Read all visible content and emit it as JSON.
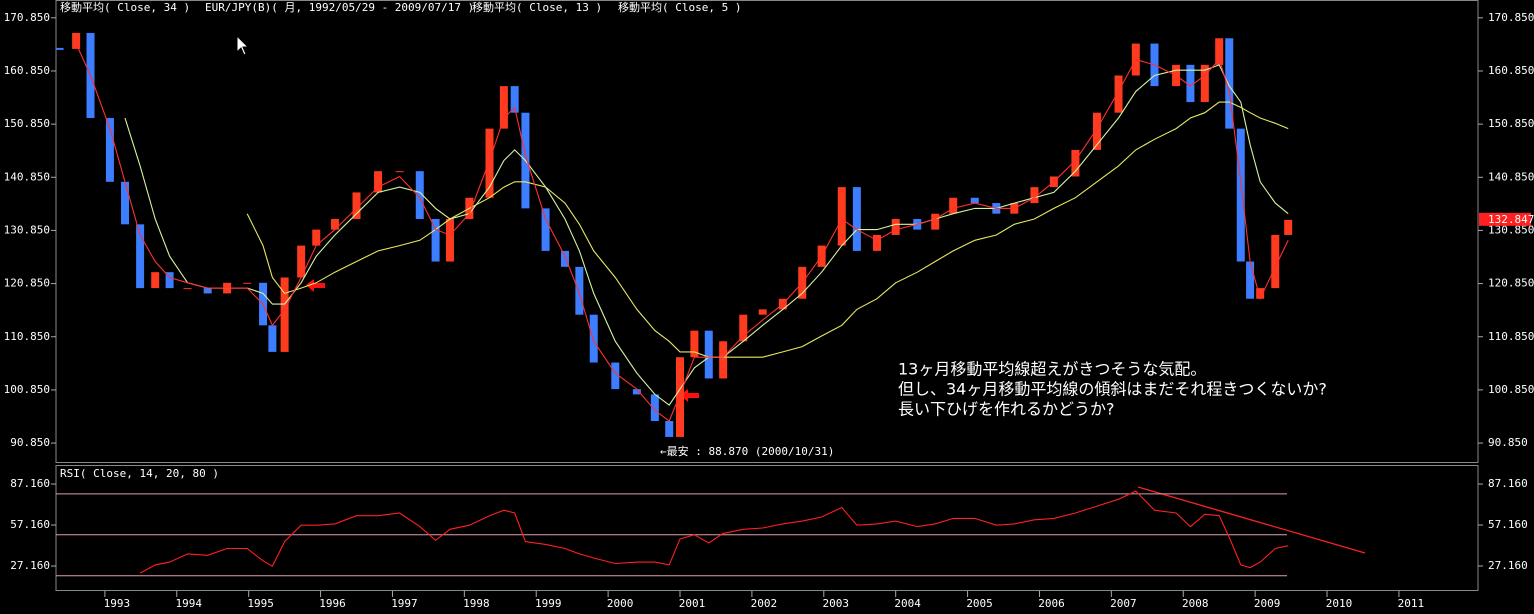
{
  "chart_data": [
    {
      "type": "candlestick",
      "title": "EUR/JPY(B)( 月, 1992/05/29 - 2009/07/17 )",
      "x": [
        1992.37,
        1992.6,
        1992.8,
        1993.07,
        1993.28,
        1993.49,
        1993.7,
        1993.9,
        1994.15,
        1994.43,
        1994.7,
        1994.98,
        1995.2,
        1995.33,
        1995.5,
        1995.73,
        1995.94,
        1996.2,
        1996.5,
        1996.8,
        1997.1,
        1997.38,
        1997.6,
        1997.8,
        1998.07,
        1998.35,
        1998.55,
        1998.7,
        1998.85,
        1999.13,
        1999.4,
        1999.6,
        1999.8,
        2000.1,
        2000.4,
        2000.65,
        2000.85,
        2001.0,
        2001.2,
        2001.4,
        2001.6,
        2001.88,
        2002.15,
        2002.43,
        2002.7,
        2002.97,
        2003.25,
        2003.46,
        2003.74,
        2004.0,
        2004.3,
        2004.55,
        2004.8,
        2005.1,
        2005.4,
        2005.65,
        2005.93,
        2006.2,
        2006.5,
        2006.8,
        2007.1,
        2007.34,
        2007.6,
        2007.9,
        2008.1,
        2008.3,
        2008.5,
        2008.64,
        2008.8,
        2008.93,
        2009.07,
        2009.28,
        2009.46
      ],
      "xlim": [
        1992.32,
        2012.1
      ],
      "ylim": [
        87.1,
        174.2
      ],
      "yticks": [
        {
          "value": 90.85,
          "label": "90.850"
        },
        {
          "value": 100.85,
          "label": "100.850"
        },
        {
          "value": 110.85,
          "label": "110.850"
        },
        {
          "value": 120.85,
          "label": "120.850"
        },
        {
          "value": 130.85,
          "label": "130.850"
        },
        {
          "value": 140.85,
          "label": "140.850"
        },
        {
          "value": 150.85,
          "label": "150.850"
        },
        {
          "value": 160.85,
          "label": "160.850"
        },
        {
          "value": 170.85,
          "label": "170.850"
        }
      ],
      "series": [
        {
          "color_up": "#ff3b1f",
          "color_down": "#3d7dff",
          "values": [
            165,
            168,
            152,
            140,
            132,
            120,
            123,
            120,
            120,
            119,
            121,
            121,
            113,
            108,
            122,
            128,
            131,
            133,
            138,
            142,
            142,
            133,
            125,
            133,
            137,
            150,
            158,
            153,
            135,
            127,
            124,
            115,
            106,
            101,
            100,
            95,
            92,
            107,
            112,
            103,
            110,
            115,
            116,
            118,
            124,
            128,
            139,
            127,
            130,
            133,
            131,
            134,
            137,
            136,
            134,
            136,
            139,
            141,
            146,
            153,
            160,
            166,
            158,
            162,
            155,
            162,
            167,
            150,
            125,
            118,
            120,
            130,
            132.847
          ]
        },
        {
          "name": "移動平均( Close, 34 )",
          "color": "#e8e860",
          "values": [
            null,
            null,
            null,
            null,
            null,
            null,
            null,
            null,
            null,
            null,
            null,
            134,
            128,
            122,
            119,
            120,
            121,
            123,
            125,
            127,
            128,
            129,
            131,
            133,
            135,
            137,
            139,
            140,
            140,
            139,
            136,
            132,
            127,
            122,
            116,
            112,
            110,
            108,
            108,
            107,
            107,
            107,
            107,
            108,
            109,
            111,
            113,
            116,
            118,
            121,
            123,
            125,
            127,
            129,
            130,
            132,
            133,
            135,
            137,
            140,
            143,
            146,
            148,
            150,
            152,
            153,
            155,
            155,
            154,
            153,
            152,
            151,
            150
          ]
        },
        {
          "name": "移動平均( Close, 13 )",
          "color": "#d4f5a0",
          "values": [
            null,
            null,
            null,
            null,
            152,
            143,
            133,
            126,
            121,
            120,
            120,
            120,
            119,
            117,
            117,
            121,
            126,
            130,
            134,
            138,
            139,
            138,
            135,
            133,
            134,
            139,
            144,
            146,
            144,
            139,
            133,
            127,
            119,
            110,
            104,
            100,
            98,
            101,
            105,
            107,
            107,
            110,
            113,
            116,
            119,
            123,
            128,
            131,
            131,
            132,
            132,
            133,
            134,
            135,
            135,
            136,
            137,
            138,
            142,
            147,
            152,
            157,
            160,
            161,
            161,
            161,
            162,
            158,
            155,
            147,
            140,
            136,
            134
          ]
        },
        {
          "name": "移動平均( Close, 5 )",
          "color": "#ff3030",
          "values": [
            null,
            166,
            160,
            150,
            140,
            130,
            125,
            122,
            121,
            120,
            120,
            120,
            117,
            113,
            116,
            122,
            128,
            131,
            135,
            139,
            141,
            137,
            131,
            130,
            134,
            144,
            152,
            154,
            145,
            133,
            126,
            119,
            110,
            104,
            101,
            97,
            95,
            100,
            107,
            107,
            107,
            111,
            114,
            117,
            121,
            126,
            133,
            131,
            129,
            131,
            132,
            133,
            135,
            136,
            135,
            135,
            137,
            140,
            144,
            150,
            157,
            163,
            162,
            160,
            158,
            160,
            163,
            157,
            140,
            125,
            118,
            124,
            129
          ]
        }
      ],
      "last_label_color": "#ff2020",
      "annotation": "←最安 : 88.870 (2000/10/31)",
      "comment": [
        "13ヶ月移動平均線超えがきつそうな気配。",
        "但し、34ヶ月移動平均線の傾斜はまだそれ程きつくないか?",
        "長い下ひげを作れるかどうか?"
      ]
    },
    {
      "type": "line",
      "title": "RSI( Close, 14, 20, 80 )",
      "x": [
        1992.37,
        1992.6,
        1992.8,
        1993.07,
        1993.28,
        1993.49,
        1993.7,
        1993.9,
        1994.15,
        1994.43,
        1994.7,
        1994.98,
        1995.2,
        1995.33,
        1995.5,
        1995.73,
        1995.94,
        1996.2,
        1996.5,
        1996.8,
        1997.1,
        1997.38,
        1997.6,
        1997.8,
        1998.07,
        1998.35,
        1998.55,
        1998.7,
        1998.85,
        1999.13,
        1999.4,
        1999.6,
        1999.8,
        2000.1,
        2000.4,
        2000.65,
        2000.85,
        2001.0,
        2001.2,
        2001.4,
        2001.6,
        2001.88,
        2002.15,
        2002.43,
        2002.7,
        2002.97,
        2003.25,
        2003.46,
        2003.74,
        2004.0,
        2004.3,
        2004.55,
        2004.8,
        2005.1,
        2005.4,
        2005.65,
        2005.93,
        2006.2,
        2006.5,
        2006.8,
        2007.1,
        2007.34,
        2007.6,
        2007.9,
        2008.1,
        2008.3,
        2008.5,
        2008.64,
        2008.8,
        2008.93,
        2009.07,
        2009.28,
        2009.46
      ],
      "xlim": [
        1992.32,
        2012.1
      ],
      "xticks": [
        1993,
        1994,
        1995,
        1996,
        1997,
        1998,
        1999,
        2000,
        2001,
        2002,
        2003,
        2004,
        2005,
        2006,
        2007,
        2008,
        2009,
        2010,
        2011
      ],
      "ylim": [
        9.6,
        101.1
      ],
      "yticks": [
        {
          "value": 27.16,
          "label": "27.160"
        },
        {
          "value": 57.16,
          "label": "57.160"
        },
        {
          "value": 87.16,
          "label": "87.160"
        }
      ],
      "levels": [
        20,
        50,
        80
      ],
      "level_color": "#d9a0b0",
      "series": [
        {
          "color": "#ff2020",
          "values": [
            null,
            null,
            null,
            null,
            null,
            22,
            28,
            30,
            36,
            35,
            40,
            40,
            31,
            27,
            45,
            57,
            57,
            58,
            64,
            64,
            66,
            56,
            46,
            54,
            57,
            64,
            68,
            66,
            45,
            43,
            40,
            36,
            33,
            29,
            30,
            30,
            28,
            47,
            50,
            44,
            51,
            54,
            55,
            58,
            60,
            63,
            70,
            57,
            58,
            60,
            56,
            58,
            62,
            62,
            57,
            58,
            61,
            62,
            66,
            71,
            76,
            82,
            68,
            66,
            56,
            65,
            64,
            48,
            28,
            26,
            30,
            40,
            42
          ]
        }
      ]
    }
  ]
}
